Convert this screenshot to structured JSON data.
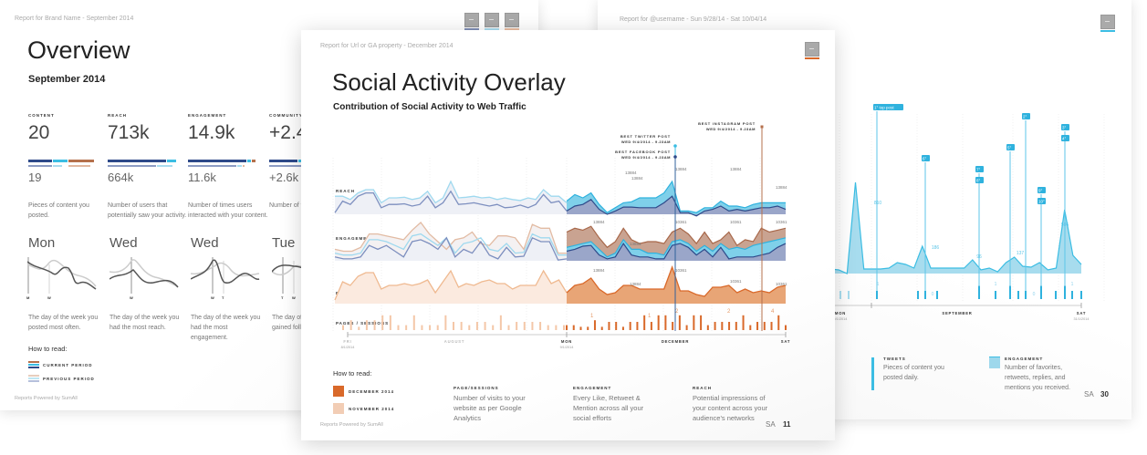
{
  "left_page": {
    "header": "Report for Brand Name - September 2014",
    "title": "Overview",
    "subtitle": "September 2014",
    "stats": [
      {
        "label": "CONTENT",
        "value": "20",
        "previous": "19",
        "description": "Pieces of content you posted."
      },
      {
        "label": "REACH",
        "value": "713k",
        "previous": "664k",
        "description": "Number of users that potentially saw your activity."
      },
      {
        "label": "ENGAGEMENT",
        "value": "14.9k",
        "previous": "11.6k",
        "description": "Number of times users interacted with your content."
      },
      {
        "label": "COMMUNITY",
        "value": "+2.4",
        "previous": "+2.6k",
        "description": "Number of f... and fans yo..."
      }
    ],
    "days": [
      {
        "day": "Mon",
        "ticks": [
          "M",
          "W"
        ],
        "description": "The day of the week you posted most often."
      },
      {
        "day": "Wed",
        "ticks": [
          "W"
        ],
        "description": "The day of the week you had the most reach."
      },
      {
        "day": "Wed",
        "ticks": [
          "W",
          "T"
        ],
        "description": "The day of the week you had the most engagement."
      },
      {
        "day": "Tue",
        "ticks": [
          "T",
          "W"
        ],
        "description": "The day of the week you gained followers c..."
      }
    ],
    "how_to_read": "How to read:",
    "legend": [
      {
        "label": "CURRENT PERIOD"
      },
      {
        "label": "PREVIOUS PERIOD"
      }
    ],
    "footer": "Reports Powered by SumAll",
    "colors": {
      "navy": "#2e4a8a",
      "cyan": "#3bbde3",
      "copper": "#b5704c"
    }
  },
  "center_page": {
    "header": "Report for Url or GA property - December 2014",
    "title": "Social Activity Overlay",
    "subtitle": "Contribution of Social Activity to Web Traffic",
    "row_labels": [
      "REACH",
      "ENGAGEMENT",
      "PAGE VIEWS",
      "PAGES / SESSIONS"
    ],
    "annotations": [
      {
        "title": "BEST TWITTER POST",
        "date": "WED 9/4/2014 - 9.23AM"
      },
      {
        "title": "BEST FACEBOOK POST",
        "date": "WED 9/4/2014 - 9.23AM"
      },
      {
        "title": "BEST INSTAGRAM POST",
        "date": "WED 9/4/2014 - 9.23AM"
      }
    ],
    "value_labels": {
      "reach": [
        "13884",
        "13884",
        "13884",
        "13884",
        "13884"
      ],
      "engagement": [
        "13884",
        "13884",
        "10361",
        "10361",
        "10361"
      ],
      "page_views": [
        "13884",
        "13884",
        "10361",
        "10361",
        "10361"
      ],
      "sessions": [
        "1",
        "1",
        "2",
        "2",
        "4"
      ]
    },
    "x_axis": [
      {
        "label": "FRI",
        "sub": "8/1/2014"
      },
      {
        "label": "AUGUST",
        "sub": ""
      },
      {
        "label": "MON",
        "sub": "9/1/2014"
      },
      {
        "label": "DECEMBER",
        "sub": ""
      },
      {
        "label": "SAT",
        "sub": ""
      }
    ],
    "how_to_read": "How to read:",
    "legend": [
      {
        "label": "DECEMBER 2014",
        "color": "#d9692a"
      },
      {
        "label": "NOVEMBER 2014",
        "color": "#f2cdb5"
      }
    ],
    "definitions": [
      {
        "title": "PAGE/SESSIONS",
        "text": "Number of visits to your website as per Google Analytics"
      },
      {
        "title": "ENGAGEMENT",
        "text": "Every Like, Retweet & Mention across all your social efforts"
      },
      {
        "title": "REACH",
        "text": "Potential impressions of your content across your audience's networks"
      }
    ],
    "footer": "Reports Powered by SumAll",
    "logo": "SA",
    "page_number": "11"
  },
  "right_page": {
    "header": "Report for @username - Sun 9/28/14 - Sat 10/04/14",
    "post_markers": [
      "1° top post",
      "2°",
      "3°",
      "4°",
      "5°",
      "6°",
      "7°",
      "8°",
      "9°",
      "10°"
    ],
    "peak_labels": [
      "810",
      "186",
      "96",
      "137",
      "506"
    ],
    "tweet_counts": [
      "1",
      "0",
      "1",
      "0",
      "1"
    ],
    "x_axis": [
      {
        "label": "MON",
        "sub": "9/1/2014"
      },
      {
        "label": "SEPTEMBER",
        "sub": ""
      },
      {
        "label": "SAT",
        "sub": "31/1/2014"
      }
    ],
    "legend": [
      {
        "title": "TWEETS",
        "text": "Pieces of content you posted daily."
      },
      {
        "title": "ENGAGEMENT",
        "text": "Number of favorites, retweets, replies, and mentions you received."
      }
    ],
    "logo": "SA",
    "page_number": "30"
  }
}
